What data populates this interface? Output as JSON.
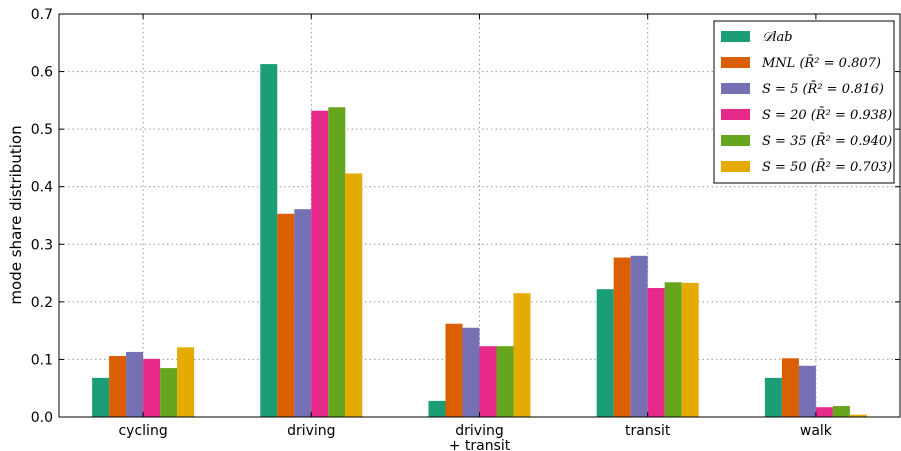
{
  "chart_data": {
    "type": "bar",
    "ylabel": "mode share distribution",
    "xlabel": "",
    "ylim": [
      0,
      0.7
    ],
    "yticks": [
      "0.0",
      "0.1",
      "0.2",
      "0.3",
      "0.4",
      "0.5",
      "0.6",
      "0.7"
    ],
    "categories": [
      [
        "cycling"
      ],
      [
        "driving"
      ],
      [
        "driving",
        "+ transit"
      ],
      [
        "transit"
      ],
      [
        "walk"
      ]
    ],
    "grid": true,
    "legend_position": "top-right",
    "series": [
      {
        "name": "𝒟lab",
        "color": "#1b9e77",
        "values": [
          0.068,
          0.613,
          0.028,
          0.222,
          0.068
        ]
      },
      {
        "name": "MNL (R̄² = 0.807)",
        "color": "#d95f02",
        "values": [
          0.106,
          0.353,
          0.162,
          0.277,
          0.102
        ]
      },
      {
        "name": "S = 5 (R̄² = 0.816)",
        "color": "#7570b3",
        "values": [
          0.113,
          0.361,
          0.155,
          0.28,
          0.089
        ]
      },
      {
        "name": "S = 20 (R̄² = 0.938)",
        "color": "#e7298a",
        "values": [
          0.101,
          0.532,
          0.123,
          0.224,
          0.017
        ]
      },
      {
        "name": "S = 35 (R̄² = 0.940)",
        "color": "#66a61e",
        "values": [
          0.085,
          0.538,
          0.123,
          0.234,
          0.019
        ]
      },
      {
        "name": "S = 50 (R̄² = 0.703)",
        "color": "#e6ab02",
        "values": [
          0.121,
          0.423,
          0.215,
          0.233,
          0.004
        ]
      }
    ]
  }
}
